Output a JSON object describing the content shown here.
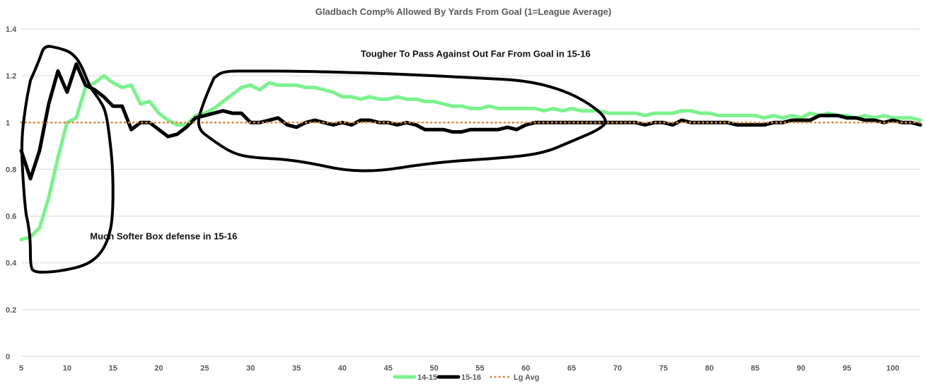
{
  "chart_data": {
    "type": "line",
    "title": "Gladbach Comp% Allowed By Yards From Goal (1=League Average)",
    "xlabel": "",
    "ylabel": "",
    "xlim": [
      5,
      103
    ],
    "ylim": [
      0,
      1.4
    ],
    "xticks": [
      5,
      10,
      15,
      20,
      25,
      30,
      35,
      40,
      45,
      50,
      55,
      60,
      65,
      70,
      75,
      80,
      85,
      90,
      95,
      100
    ],
    "yticks": [
      0,
      0.2,
      0.4,
      0.6,
      0.8,
      1,
      1.2,
      1.4
    ],
    "ytick_labels": [
      "0",
      "0.2",
      "0.4",
      "0.6",
      "0.8",
      "1",
      "1.2",
      "1.4"
    ],
    "grid": true,
    "legend_position": "bottom",
    "series": [
      {
        "name": "14-15",
        "color": "#7cf28e",
        "points": [
          [
            5,
            0.5
          ],
          [
            6,
            0.51
          ],
          [
            7,
            0.55
          ],
          [
            8,
            0.68
          ],
          [
            9,
            0.85
          ],
          [
            10,
            1.0
          ],
          [
            11,
            1.02
          ],
          [
            12,
            1.15
          ],
          [
            13,
            1.17
          ],
          [
            14,
            1.2
          ],
          [
            15,
            1.17
          ],
          [
            16,
            1.15
          ],
          [
            17,
            1.16
          ],
          [
            18,
            1.08
          ],
          [
            19,
            1.09
          ],
          [
            20,
            1.04
          ],
          [
            21,
            1.01
          ],
          [
            22,
            0.99
          ],
          [
            23,
            0.99
          ],
          [
            24,
            1.03
          ],
          [
            25,
            1.04
          ],
          [
            26,
            1.06
          ],
          [
            27,
            1.09
          ],
          [
            28,
            1.12
          ],
          [
            29,
            1.15
          ],
          [
            30,
            1.16
          ],
          [
            31,
            1.14
          ],
          [
            32,
            1.17
          ],
          [
            33,
            1.16
          ],
          [
            34,
            1.16
          ],
          [
            35,
            1.16
          ],
          [
            36,
            1.15
          ],
          [
            37,
            1.15
          ],
          [
            38,
            1.14
          ],
          [
            39,
            1.13
          ],
          [
            40,
            1.11
          ],
          [
            41,
            1.11
          ],
          [
            42,
            1.1
          ],
          [
            43,
            1.11
          ],
          [
            44,
            1.1
          ],
          [
            45,
            1.1
          ],
          [
            46,
            1.11
          ],
          [
            47,
            1.1
          ],
          [
            48,
            1.1
          ],
          [
            49,
            1.09
          ],
          [
            50,
            1.09
          ],
          [
            51,
            1.08
          ],
          [
            52,
            1.07
          ],
          [
            53,
            1.07
          ],
          [
            54,
            1.06
          ],
          [
            55,
            1.06
          ],
          [
            56,
            1.07
          ],
          [
            57,
            1.06
          ],
          [
            58,
            1.06
          ],
          [
            59,
            1.06
          ],
          [
            60,
            1.06
          ],
          [
            61,
            1.06
          ],
          [
            62,
            1.05
          ],
          [
            63,
            1.06
          ],
          [
            64,
            1.05
          ],
          [
            65,
            1.06
          ],
          [
            66,
            1.05
          ],
          [
            67,
            1.05
          ],
          [
            68,
            1.05
          ],
          [
            69,
            1.04
          ],
          [
            70,
            1.04
          ],
          [
            71,
            1.04
          ],
          [
            72,
            1.04
          ],
          [
            73,
            1.03
          ],
          [
            74,
            1.04
          ],
          [
            75,
            1.04
          ],
          [
            76,
            1.04
          ],
          [
            77,
            1.05
          ],
          [
            78,
            1.05
          ],
          [
            79,
            1.04
          ],
          [
            80,
            1.04
          ],
          [
            81,
            1.03
          ],
          [
            82,
            1.03
          ],
          [
            83,
            1.03
          ],
          [
            84,
            1.03
          ],
          [
            85,
            1.03
          ],
          [
            86,
            1.02
          ],
          [
            87,
            1.03
          ],
          [
            88,
            1.02
          ],
          [
            89,
            1.03
          ],
          [
            90,
            1.02
          ],
          [
            91,
            1.04
          ],
          [
            92,
            1.03
          ],
          [
            93,
            1.04
          ],
          [
            94,
            1.03
          ],
          [
            95,
            1.03
          ],
          [
            96,
            1.02
          ],
          [
            97,
            1.03
          ],
          [
            98,
            1.02
          ],
          [
            99,
            1.03
          ],
          [
            100,
            1.02
          ],
          [
            101,
            1.02
          ],
          [
            102,
            1.02
          ],
          [
            103,
            1.01
          ]
        ]
      },
      {
        "name": "15-16",
        "color": "#000000",
        "points": [
          [
            5,
            0.88
          ],
          [
            6,
            0.76
          ],
          [
            7,
            0.88
          ],
          [
            8,
            1.08
          ],
          [
            9,
            1.22
          ],
          [
            10,
            1.13
          ],
          [
            11,
            1.25
          ],
          [
            12,
            1.16
          ],
          [
            13,
            1.14
          ],
          [
            14,
            1.11
          ],
          [
            15,
            1.07
          ],
          [
            16,
            1.07
          ],
          [
            17,
            0.97
          ],
          [
            18,
            1.0
          ],
          [
            19,
            1.0
          ],
          [
            20,
            0.97
          ],
          [
            21,
            0.94
          ],
          [
            22,
            0.95
          ],
          [
            23,
            0.98
          ],
          [
            24,
            1.02
          ],
          [
            25,
            1.03
          ],
          [
            26,
            1.04
          ],
          [
            27,
            1.05
          ],
          [
            28,
            1.04
          ],
          [
            29,
            1.04
          ],
          [
            30,
            1.0
          ],
          [
            31,
            1.0
          ],
          [
            32,
            1.01
          ],
          [
            33,
            1.02
          ],
          [
            34,
            0.99
          ],
          [
            35,
            0.98
          ],
          [
            36,
            1.0
          ],
          [
            37,
            1.01
          ],
          [
            38,
            1.0
          ],
          [
            39,
            0.99
          ],
          [
            40,
            1.0
          ],
          [
            41,
            0.99
          ],
          [
            42,
            1.01
          ],
          [
            43,
            1.01
          ],
          [
            44,
            1.0
          ],
          [
            45,
            1.0
          ],
          [
            46,
            0.99
          ],
          [
            47,
            1.0
          ],
          [
            48,
            0.99
          ],
          [
            49,
            0.97
          ],
          [
            50,
            0.97
          ],
          [
            51,
            0.97
          ],
          [
            52,
            0.96
          ],
          [
            53,
            0.96
          ],
          [
            54,
            0.97
          ],
          [
            55,
            0.97
          ],
          [
            56,
            0.97
          ],
          [
            57,
            0.97
          ],
          [
            58,
            0.98
          ],
          [
            59,
            0.97
          ],
          [
            60,
            0.99
          ],
          [
            61,
            1.0
          ],
          [
            62,
            1.0
          ],
          [
            63,
            1.0
          ],
          [
            64,
            1.0
          ],
          [
            65,
            1.0
          ],
          [
            66,
            1.0
          ],
          [
            67,
            1.0
          ],
          [
            68,
            1.0
          ],
          [
            69,
            1.0
          ],
          [
            70,
            1.0
          ],
          [
            71,
            1.0
          ],
          [
            72,
            1.0
          ],
          [
            73,
            0.99
          ],
          [
            74,
            1.0
          ],
          [
            75,
            1.0
          ],
          [
            76,
            0.99
          ],
          [
            77,
            1.01
          ],
          [
            78,
            1.0
          ],
          [
            79,
            1.0
          ],
          [
            80,
            1.0
          ],
          [
            81,
            1.0
          ],
          [
            82,
            1.0
          ],
          [
            83,
            0.99
          ],
          [
            84,
            0.99
          ],
          [
            85,
            0.99
          ],
          [
            86,
            0.99
          ],
          [
            87,
            1.0
          ],
          [
            88,
            1.0
          ],
          [
            89,
            1.01
          ],
          [
            90,
            1.01
          ],
          [
            91,
            1.01
          ],
          [
            92,
            1.03
          ],
          [
            93,
            1.03
          ],
          [
            94,
            1.03
          ],
          [
            95,
            1.02
          ],
          [
            96,
            1.02
          ],
          [
            97,
            1.01
          ],
          [
            98,
            1.01
          ],
          [
            99,
            1.0
          ],
          [
            100,
            1.01
          ],
          [
            101,
            1.0
          ],
          [
            102,
            1.0
          ],
          [
            103,
            0.99
          ]
        ]
      },
      {
        "name": "Lg Avg",
        "color": "#e08a3c",
        "dashed": true,
        "points": [
          [
            5,
            1
          ],
          [
            103,
            1
          ]
        ]
      }
    ],
    "annotations": [
      {
        "text": "Tougher To Pass Against Out Far From Goal in 15-16",
        "anchor": [
          42,
          1.28
        ],
        "shape": "ellipse",
        "outline": [
          [
            26,
            1.19
          ],
          [
            27,
            1.22
          ],
          [
            30,
            1.22
          ],
          [
            35,
            1.22
          ],
          [
            45,
            1.21
          ],
          [
            55,
            1.19
          ],
          [
            60,
            1.18
          ],
          [
            64,
            1.14
          ],
          [
            67,
            1.08
          ],
          [
            69,
            1.01
          ],
          [
            68,
            0.97
          ],
          [
            65,
            0.92
          ],
          [
            62,
            0.87
          ],
          [
            58,
            0.85
          ],
          [
            50,
            0.83
          ],
          [
            42,
            0.78
          ],
          [
            35,
            0.84
          ],
          [
            30,
            0.85
          ],
          [
            28,
            0.87
          ],
          [
            26,
            0.92
          ],
          [
            24,
            0.98
          ],
          [
            25,
            1.1
          ],
          [
            26,
            1.19
          ]
        ]
      },
      {
        "text": "Much Softer Box defense in 15-16",
        "anchor": [
          12.5,
          0.5
        ],
        "shape": "ellipse",
        "outline": [
          [
            6,
            1.18
          ],
          [
            7,
            1.27
          ],
          [
            7.5,
            1.33
          ],
          [
            9,
            1.32
          ],
          [
            10.5,
            1.3
          ],
          [
            11.5,
            1.25
          ],
          [
            12.5,
            1.15
          ],
          [
            13.5,
            1.1
          ],
          [
            14.2,
            1.05
          ],
          [
            14.6,
            0.95
          ],
          [
            15,
            0.8
          ],
          [
            15,
            0.6
          ],
          [
            14.5,
            0.5
          ],
          [
            13.5,
            0.43
          ],
          [
            12,
            0.39
          ],
          [
            10,
            0.37
          ],
          [
            8,
            0.36
          ],
          [
            6.5,
            0.36
          ],
          [
            6,
            0.38
          ],
          [
            6,
            0.5
          ],
          [
            5.7,
            0.58
          ],
          [
            5.5,
            0.61
          ],
          [
            5.2,
            0.75
          ],
          [
            5,
            0.92
          ],
          [
            5.5,
            1.08
          ],
          [
            6,
            1.18
          ]
        ]
      }
    ]
  }
}
